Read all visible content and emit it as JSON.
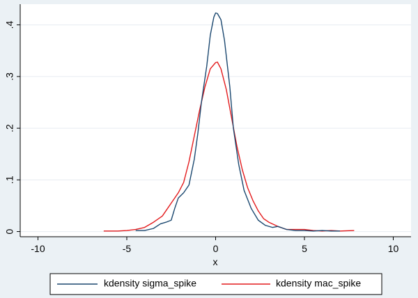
{
  "chart_data": {
    "type": "line",
    "xlabel": "x",
    "ylabel": "",
    "xlim": [
      -11,
      11
    ],
    "ylim": [
      -0.01,
      0.44
    ],
    "x_ticks": [
      -10,
      -5,
      0,
      5,
      10
    ],
    "x_tick_labels": [
      "-10",
      "-5",
      "0",
      "5",
      "10"
    ],
    "y_ticks": [
      0,
      0.1,
      0.2,
      0.3,
      0.4
    ],
    "y_tick_labels": [
      "0",
      ".1",
      ".2",
      ".3",
      ".4"
    ],
    "grid": true,
    "legend_position": "bottom",
    "series": [
      {
        "name": "kdensity sigma_spike",
        "color": "#1a476f",
        "points": [
          [
            -4.5,
            0.002
          ],
          [
            -4.0,
            0.002
          ],
          [
            -3.5,
            0.006
          ],
          [
            -3.1,
            0.015
          ],
          [
            -2.8,
            0.018
          ],
          [
            -2.5,
            0.022
          ],
          [
            -2.3,
            0.045
          ],
          [
            -2.1,
            0.065
          ],
          [
            -1.8,
            0.075
          ],
          [
            -1.5,
            0.09
          ],
          [
            -1.2,
            0.14
          ],
          [
            -1.0,
            0.19
          ],
          [
            -0.8,
            0.25
          ],
          [
            -0.5,
            0.32
          ],
          [
            -0.3,
            0.38
          ],
          [
            -0.1,
            0.415
          ],
          [
            0.0,
            0.423
          ],
          [
            0.1,
            0.422
          ],
          [
            0.3,
            0.41
          ],
          [
            0.5,
            0.37
          ],
          [
            0.8,
            0.28
          ],
          [
            1.0,
            0.2
          ],
          [
            1.3,
            0.13
          ],
          [
            1.6,
            0.08
          ],
          [
            2.0,
            0.045
          ],
          [
            2.4,
            0.022
          ],
          [
            2.8,
            0.012
          ],
          [
            3.2,
            0.008
          ],
          [
            3.5,
            0.01
          ],
          [
            4.0,
            0.004
          ],
          [
            4.5,
            0.002
          ],
          [
            5.0,
            0.002
          ],
          [
            5.5,
            0.001
          ],
          [
            6.0,
            0.002
          ],
          [
            6.5,
            0.001
          ],
          [
            7.0,
            0.001
          ]
        ]
      },
      {
        "name": "kdensity mac_spike",
        "color": "#e31a1c",
        "points": [
          [
            -6.3,
            0.001
          ],
          [
            -5.5,
            0.001
          ],
          [
            -5.0,
            0.002
          ],
          [
            -4.5,
            0.004
          ],
          [
            -4.0,
            0.008
          ],
          [
            -3.5,
            0.018
          ],
          [
            -3.0,
            0.03
          ],
          [
            -2.7,
            0.045
          ],
          [
            -2.4,
            0.06
          ],
          [
            -2.1,
            0.075
          ],
          [
            -1.8,
            0.095
          ],
          [
            -1.5,
            0.135
          ],
          [
            -1.2,
            0.185
          ],
          [
            -0.9,
            0.235
          ],
          [
            -0.6,
            0.28
          ],
          [
            -0.3,
            0.315
          ],
          [
            0.0,
            0.327
          ],
          [
            0.1,
            0.328
          ],
          [
            0.3,
            0.315
          ],
          [
            0.6,
            0.275
          ],
          [
            0.9,
            0.22
          ],
          [
            1.2,
            0.165
          ],
          [
            1.5,
            0.12
          ],
          [
            1.8,
            0.085
          ],
          [
            2.1,
            0.06
          ],
          [
            2.4,
            0.04
          ],
          [
            2.7,
            0.025
          ],
          [
            3.0,
            0.018
          ],
          [
            3.5,
            0.01
          ],
          [
            4.0,
            0.004
          ],
          [
            4.5,
            0.004
          ],
          [
            5.0,
            0.004
          ],
          [
            5.5,
            0.002
          ],
          [
            6.0,
            0.001
          ],
          [
            6.5,
            0.002
          ],
          [
            7.0,
            0.001
          ],
          [
            7.8,
            0.002
          ]
        ]
      }
    ]
  }
}
